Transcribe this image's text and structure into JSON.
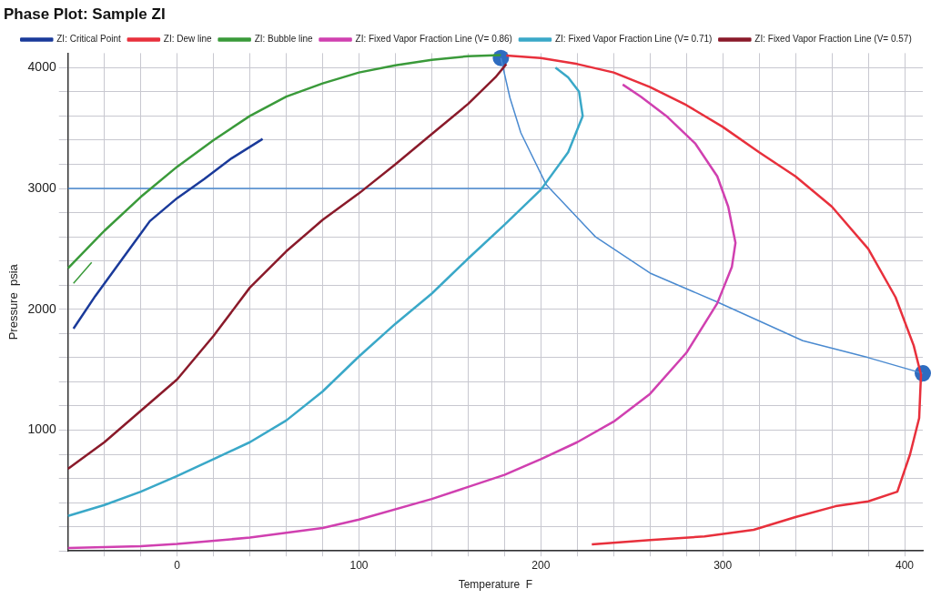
{
  "chart_data": {
    "type": "line",
    "title": "Phase Plot: Sample ZI",
    "xlabel": "Temperature  F",
    "ylabel": "Pressure  psia",
    "xlim": [
      -60,
      410
    ],
    "xticks": [
      {
        "value": -40,
        "label": null
      },
      {
        "value": -20,
        "label": null
      },
      0,
      {
        "value": 20,
        "label": null
      },
      {
        "value": 40,
        "label": null
      },
      {
        "value": 60,
        "label": null
      },
      {
        "value": 80,
        "label": null
      },
      100,
      {
        "value": 120,
        "label": null
      },
      {
        "value": 140,
        "label": null
      },
      {
        "value": 160,
        "label": null
      },
      {
        "value": 180,
        "label": null
      },
      200,
      {
        "value": 220,
        "label": null
      },
      {
        "value": 240,
        "label": null
      },
      {
        "value": 260,
        "label": null
      },
      {
        "value": 280,
        "label": null
      },
      300,
      {
        "value": 320,
        "label": null
      },
      {
        "value": 340,
        "label": null
      },
      {
        "value": 360,
        "label": null
      },
      {
        "value": 380,
        "label": null
      },
      400
    ],
    "ylim": [
      0,
      4120
    ],
    "yticks": [
      {
        "value": 0,
        "label": null
      },
      {
        "value": 200,
        "label": null
      },
      {
        "value": 400,
        "label": null
      },
      {
        "value": 600,
        "label": null
      },
      {
        "value": 800,
        "label": null
      },
      1000,
      {
        "value": 1200,
        "label": null
      },
      {
        "value": 1400,
        "label": null
      },
      {
        "value": 1600,
        "label": null
      },
      {
        "value": 1800,
        "label": null
      },
      2000,
      {
        "value": 2200,
        "label": null
      },
      {
        "value": 2400,
        "label": null
      },
      {
        "value": 2600,
        "label": null
      },
      {
        "value": 2800,
        "label": null
      },
      3000,
      {
        "value": 3200,
        "label": null
      },
      {
        "value": 3400,
        "label": null
      },
      {
        "value": 3600,
        "label": null
      },
      {
        "value": 3800,
        "label": null
      },
      4000
    ],
    "grid": true,
    "legend": "top",
    "series": [
      {
        "name": "ZI: Critical Point",
        "color": "#1a3a9a",
        "type": "line",
        "x": [
          -57,
          -45,
          -30,
          -15,
          0,
          15,
          30,
          47
        ],
        "values": [
          1840,
          2110,
          2420,
          2730,
          2920,
          3080,
          3250,
          3410
        ]
      },
      {
        "name": "ZI: Dew line",
        "color": "#e8303c",
        "type": "line",
        "x": [
          181,
          200,
          220,
          240,
          260,
          280,
          300,
          320,
          340,
          360,
          380,
          395,
          405,
          409,
          408,
          403,
          396,
          380,
          362,
          340,
          317,
          290,
          260,
          228
        ],
        "values": [
          4100,
          4080,
          4030,
          3960,
          3840,
          3690,
          3510,
          3300,
          3100,
          2850,
          2500,
          2100,
          1700,
          1460,
          1100,
          800,
          490,
          410,
          370,
          280,
          175,
          120,
          90,
          55
        ]
      },
      {
        "name": "ZI: Bubble line",
        "color": "#3a9a3a",
        "type": "line",
        "x": [
          -60,
          -40,
          -20,
          0,
          20,
          40,
          60,
          80,
          100,
          120,
          140,
          160,
          178
        ],
        "values": [
          2340,
          2650,
          2930,
          3180,
          3400,
          3600,
          3760,
          3870,
          3960,
          4020,
          4065,
          4095,
          4105
        ]
      },
      {
        "name": "ZI: Fixed Vapor Fraction Line (V= 0.86)",
        "color": "#d040b0",
        "type": "line",
        "x": [
          -60,
          -20,
          0,
          40,
          80,
          100,
          140,
          160,
          180,
          200,
          220,
          240,
          260,
          280,
          297,
          305,
          307,
          303,
          297,
          285,
          269,
          255,
          245
        ],
        "values": [
          25,
          40,
          58,
          110,
          190,
          260,
          430,
          530,
          630,
          760,
          900,
          1070,
          1300,
          1640,
          2050,
          2350,
          2550,
          2850,
          3100,
          3370,
          3600,
          3760,
          3860
        ]
      },
      {
        "name": "ZI: Fixed Vapor Fraction Line (V= 0.71)",
        "color": "#3aa8c8",
        "type": "line",
        "x": [
          -60,
          -40,
          -20,
          0,
          20,
          40,
          60,
          80,
          100,
          120,
          140,
          160,
          180,
          200,
          215,
          223,
          221,
          215,
          208
        ],
        "values": [
          290,
          380,
          490,
          620,
          760,
          900,
          1080,
          1320,
          1610,
          1880,
          2130,
          2420,
          2700,
          2990,
          3300,
          3600,
          3800,
          3920,
          4000
        ]
      },
      {
        "name": "ZI: Fixed Vapor Fraction Line (V= 0.57)",
        "color": "#8a1a2a",
        "type": "line",
        "x": [
          -60,
          -40,
          -20,
          0,
          20,
          40,
          60,
          80,
          100,
          120,
          140,
          160,
          175,
          181
        ],
        "values": [
          680,
          900,
          1160,
          1420,
          1780,
          2180,
          2480,
          2740,
          2960,
          3200,
          3450,
          3700,
          3920,
          4030
        ]
      },
      {
        "color": "#3a9a3a",
        "type": "line",
        "x": [
          -57,
          -47
        ],
        "values": [
          2215,
          2388
        ]
      },
      {
        "color": "#4a8ad0",
        "type": "line",
        "x": [
          -60,
          204
        ],
        "values": [
          3000,
          3000
        ]
      },
      {
        "color": "#4a8ad0",
        "type": "line",
        "x": [
          178,
          183,
          189,
          203,
          230,
          260,
          297,
          344,
          380,
          410
        ],
        "values": [
          4080,
          3750,
          3460,
          3030,
          2600,
          2300,
          2060,
          1740,
          1600,
          1470
        ]
      },
      {
        "color": "#2e6cc0",
        "type": "scatter",
        "x": [
          178,
          410
        ],
        "values": [
          4080,
          1470
        ]
      }
    ]
  }
}
